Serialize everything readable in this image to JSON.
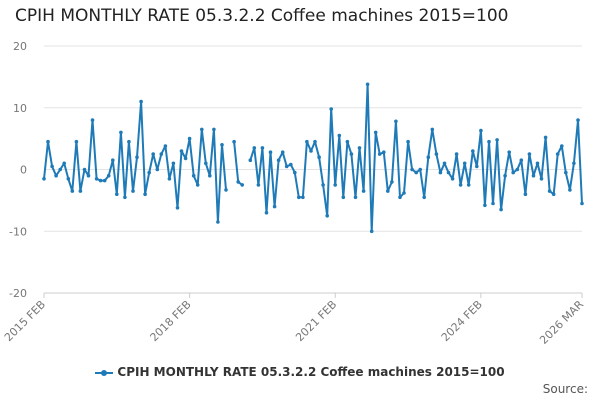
{
  "chart_data": {
    "type": "line",
    "title": "CPIH MONTHLY RATE 05.3.2.2 Coffee machines 2015=100",
    "xlabel": "",
    "ylabel": "",
    "ylim": [
      -20,
      20
    ],
    "yticks": [
      "20",
      "10",
      "0",
      "-10",
      "-20"
    ],
    "xticks": [
      "2015 FEB",
      "2018 FEB",
      "2021 FEB",
      "2024 FEB",
      "2026 MAR"
    ],
    "x_start": "2015-02",
    "x_end": "2026-03",
    "grid": "horizontal",
    "legend_position": "bottom",
    "color": "#1f7ab8",
    "series": [
      {
        "name": "CPIH MONTHLY RATE 05.3.2.2 Coffee machines 2015=100",
        "values": [
          -1.5,
          4.5,
          0.5,
          -1.0,
          0.0,
          1.0,
          -1.5,
          -3.5,
          4.5,
          -3.5,
          0.0,
          -1.0,
          8.0,
          -1.5,
          -1.8,
          -1.8,
          -1.0,
          1.5,
          -4.0,
          6.0,
          -4.5,
          4.5,
          -3.5,
          2.0,
          11.0,
          -4.0,
          -0.5,
          2.5,
          0.0,
          2.5,
          3.8,
          -1.5,
          1.0,
          -6.2,
          3.0,
          1.8,
          5.0,
          -1.0,
          -2.5,
          6.5,
          1.0,
          -1.0,
          6.5,
          -8.5,
          4.0,
          -3.3,
          null,
          4.5,
          -2.0,
          -2.5,
          null,
          1.5,
          3.5,
          -2.5,
          3.5,
          -7.0,
          2.8,
          -6.0,
          1.5,
          2.8,
          0.5,
          0.8,
          -0.5,
          -4.5,
          -4.5,
          4.5,
          3.0,
          4.5,
          2.0,
          -2.5,
          -7.5,
          9.8,
          -2.5,
          5.5,
          -4.5,
          4.5,
          2.5,
          -4.5,
          3.5,
          -3.5,
          13.8,
          -10.0,
          6.0,
          2.5,
          2.8,
          -3.5,
          -2.0,
          7.8,
          -4.5,
          -3.8,
          4.5,
          0.0,
          -0.5,
          0.0,
          -4.5,
          2.0,
          6.5,
          2.5,
          -0.5,
          1.0,
          -0.5,
          -1.5,
          2.5,
          -2.5,
          1.0,
          -2.5,
          3.0,
          0.5,
          6.3,
          -5.8,
          4.5,
          -5.5,
          4.8,
          -6.5,
          -1.0,
          2.8,
          -0.5,
          0.0,
          1.5,
          -4.0,
          2.5,
          -1.0,
          1.0,
          -1.5,
          5.2,
          -3.5,
          -4.0,
          2.5,
          3.8,
          -0.5,
          -3.3,
          1.0,
          8.0,
          -5.5
        ]
      }
    ],
    "source_label": "Source:"
  }
}
